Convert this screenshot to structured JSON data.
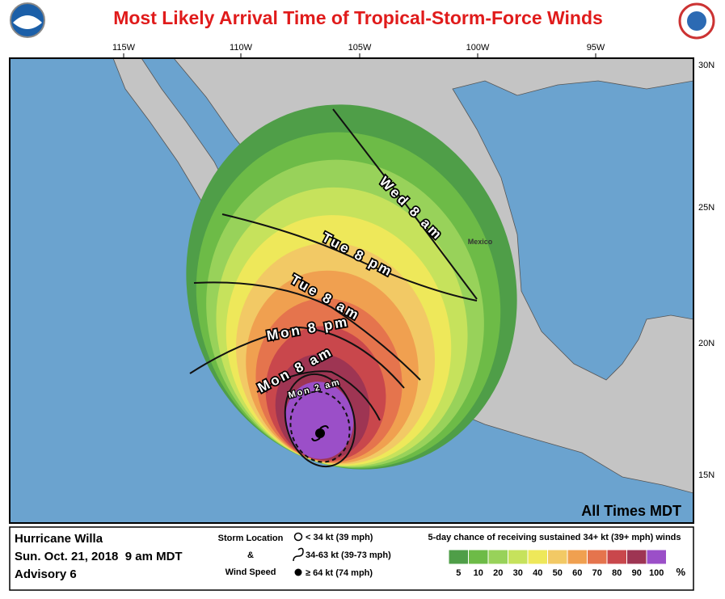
{
  "title": "Most Likely Arrival Time of Tropical-Storm-Force Winds",
  "longitude_labels": [
    "115W",
    "110W",
    "105W",
    "100W",
    "95W"
  ],
  "latitude_labels": [
    "30N",
    "25N",
    "20N",
    "15N"
  ],
  "place_labels": [
    "Mexico"
  ],
  "arrival_labels": [
    "Wed 8 am",
    "Tue 8 pm",
    "Tue 8 am",
    "Mon 8 pm",
    "Mon 8 am",
    "Mon 2 am"
  ],
  "times_note": "All Times MDT",
  "storm": {
    "name": "Hurricane Willa",
    "date": "Sun. Oct. 21, 2018  9 am MDT",
    "advisory": "Advisory 6"
  },
  "storm_legend": {
    "heading1": "Storm Location",
    "joiner": "&",
    "heading2": "Wind Speed",
    "items": [
      "< 34 kt (39 mph)",
      "34-63 kt (39-73 mph)",
      "≥ 64 kt (74 mph)"
    ]
  },
  "probability_legend": {
    "title": "5-day chance of receiving sustained 34+ kt (39+ mph) winds",
    "labels": [
      "5",
      "10",
      "20",
      "30",
      "40",
      "50",
      "60",
      "70",
      "80",
      "90",
      "100"
    ],
    "unit": "%",
    "colors": [
      "#4f9e48",
      "#6dbb47",
      "#98d25a",
      "#c6e25c",
      "#eee85a",
      "#f2c965",
      "#f0a050",
      "#e5744d",
      "#c9474c",
      "#9e3553",
      "#9b4fc8"
    ]
  }
}
